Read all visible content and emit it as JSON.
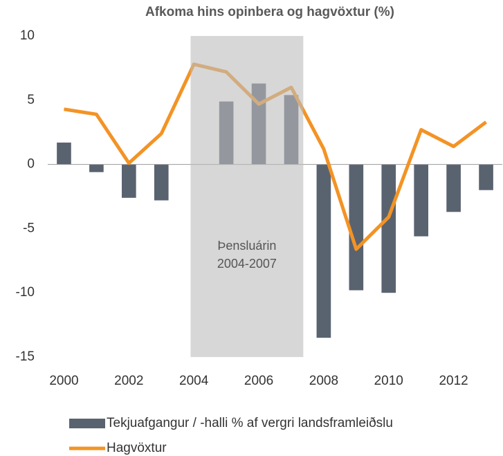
{
  "chart_data": {
    "type": "bar_line",
    "title": "Afkoma hins opinbera og hagvöxtur (%)",
    "categories": [
      "2000",
      null,
      "2002",
      null,
      "2004",
      null,
      "2006",
      null,
      "2008",
      null,
      "2010",
      null,
      "2012",
      null
    ],
    "series": [
      {
        "name": "Tekjuafgangur / -halli % af vergri landsframleiðslu",
        "type": "bar",
        "color": "#596370",
        "values": [
          1.7,
          -0.6,
          -2.6,
          -2.8,
          0,
          4.9,
          6.3,
          5.4,
          -13.5,
          -9.8,
          -10.0,
          -5.6,
          -3.7,
          -2.0
        ]
      },
      {
        "name": "Hagvöxtur",
        "type": "line",
        "color": "#f39325",
        "values": [
          4.3,
          3.9,
          0.1,
          2.4,
          7.8,
          7.2,
          4.7,
          6.0,
          1.2,
          -6.6,
          -4.1,
          2.7,
          1.4,
          3.3
        ]
      }
    ],
    "annotation": [
      "Þensluárin",
      "2004-2007"
    ],
    "ylim": [
      -15,
      10
    ],
    "yticks": [
      10,
      5,
      0,
      -5,
      -10,
      -15
    ],
    "grid": false,
    "legend": "bottom"
  }
}
